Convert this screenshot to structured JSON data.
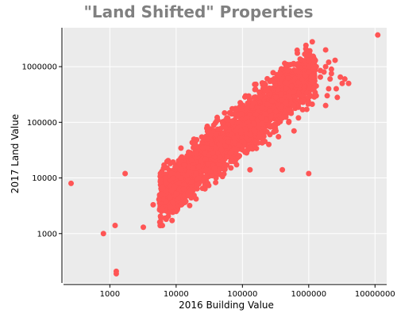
{
  "chart_data": {
    "type": "scatter",
    "title": "\"Land Shifted\" Properties",
    "xlabel": "2016 Building Value",
    "ylabel": "2017 Land Value",
    "x_scale": "log",
    "y_scale": "log",
    "xlim": [
      200,
      15000000
    ],
    "ylim": [
      130,
      5000000
    ],
    "x_ticks": [
      1000,
      10000,
      100000,
      1000000,
      10000000
    ],
    "x_tick_labels": [
      "1000",
      "10000",
      "100000",
      "1000000",
      "10000000"
    ],
    "y_ticks": [
      1000,
      10000,
      100000,
      1000000
    ],
    "y_tick_labels": [
      "1000",
      "10000",
      "100000",
      "1000000"
    ],
    "grid": true,
    "colors": {
      "point": "#ff5555",
      "panel": "#ebebeb",
      "grid": "#ffffff",
      "title": "#808080"
    },
    "points": [
      [
        260,
        8000
      ],
      [
        800,
        1000
      ],
      [
        1200,
        1400
      ],
      [
        1250,
        210
      ],
      [
        1250,
        190
      ],
      [
        1700,
        12000
      ],
      [
        3200,
        1300
      ],
      [
        6200,
        1400
      ],
      [
        4500,
        3300
      ],
      [
        5500,
        4100
      ],
      [
        6000,
        5100
      ],
      [
        7000,
        3800
      ],
      [
        8000,
        4500
      ],
      [
        8500,
        6000
      ],
      [
        9000,
        3600
      ],
      [
        9500,
        7000
      ],
      [
        10000,
        5200
      ],
      [
        11000,
        8000
      ],
      [
        12000,
        10000
      ],
      [
        13000,
        7500
      ],
      [
        14000,
        11000
      ],
      [
        15000,
        9000
      ],
      [
        16000,
        13000
      ],
      [
        17000,
        8500
      ],
      [
        18000,
        15000
      ],
      [
        20000,
        12000
      ],
      [
        22000,
        16000
      ],
      [
        24000,
        20000
      ],
      [
        26000,
        14000
      ],
      [
        28000,
        22000
      ],
      [
        30000,
        18000
      ],
      [
        32000,
        26000
      ],
      [
        35000,
        30000
      ],
      [
        38000,
        24000
      ],
      [
        40000,
        34000
      ],
      [
        42000,
        28000
      ],
      [
        45000,
        40000
      ],
      [
        48000,
        32000
      ],
      [
        50000,
        45000
      ],
      [
        55000,
        38000
      ],
      [
        60000,
        50000
      ],
      [
        65000,
        44000
      ],
      [
        70000,
        60000
      ],
      [
        75000,
        52000
      ],
      [
        80000,
        70000
      ],
      [
        85000,
        58000
      ],
      [
        90000,
        80000
      ],
      [
        95000,
        65000
      ],
      [
        100000,
        90000
      ],
      [
        110000,
        75000
      ],
      [
        120000,
        100000
      ],
      [
        130000,
        85000
      ],
      [
        140000,
        120000
      ],
      [
        150000,
        95000
      ],
      [
        160000,
        140000
      ],
      [
        170000,
        110000
      ],
      [
        180000,
        160000
      ],
      [
        190000,
        125000
      ],
      [
        200000,
        180000
      ],
      [
        220000,
        140000
      ],
      [
        240000,
        210000
      ],
      [
        260000,
        160000
      ],
      [
        280000,
        240000
      ],
      [
        300000,
        180000
      ],
      [
        320000,
        280000
      ],
      [
        350000,
        200000
      ],
      [
        380000,
        320000
      ],
      [
        400000,
        250000
      ],
      [
        450000,
        400000
      ],
      [
        500000,
        300000
      ],
      [
        550000,
        450000
      ],
      [
        600000,
        350000
      ],
      [
        700000,
        520000
      ],
      [
        800000,
        600000
      ],
      [
        900000,
        700000
      ],
      [
        1000000,
        800000
      ],
      [
        1100000,
        650000
      ],
      [
        1200000,
        900000
      ],
      [
        1300000,
        1000000
      ],
      [
        1500000,
        850000
      ],
      [
        1800000,
        1000000
      ],
      [
        2000000,
        1200000
      ],
      [
        2200000,
        900000
      ],
      [
        15000,
        5000
      ],
      [
        18000,
        6000
      ],
      [
        21000,
        7500
      ],
      [
        25000,
        9000
      ],
      [
        28000,
        10500
      ],
      [
        33000,
        12500
      ],
      [
        38000,
        15000
      ],
      [
        44000,
        17500
      ],
      [
        50000,
        20000
      ],
      [
        58000,
        24000
      ],
      [
        66000,
        28000
      ],
      [
        76000,
        33000
      ],
      [
        88000,
        39000
      ],
      [
        100000,
        45000
      ],
      [
        115000,
        52000
      ],
      [
        130000,
        60000
      ],
      [
        150000,
        70000
      ],
      [
        175000,
        82000
      ],
      [
        200000,
        95000
      ],
      [
        230000,
        110000
      ],
      [
        270000,
        130000
      ],
      [
        320000,
        155000
      ],
      [
        380000,
        185000
      ],
      [
        450000,
        220000
      ],
      [
        7000,
        8000
      ],
      [
        9000,
        10000
      ],
      [
        12000,
        14000
      ],
      [
        16000,
        20000
      ],
      [
        20000,
        27000
      ],
      [
        26000,
        36000
      ],
      [
        33000,
        48000
      ],
      [
        42000,
        62000
      ],
      [
        55000,
        80000
      ],
      [
        70000,
        105000
      ],
      [
        90000,
        135000
      ],
      [
        115000,
        175000
      ],
      [
        145000,
        225000
      ],
      [
        185000,
        290000
      ],
      [
        240000,
        380000
      ],
      [
        310000,
        500000
      ],
      [
        400000,
        650000
      ],
      [
        520000,
        850000
      ],
      [
        25000,
        35000
      ],
      [
        30000,
        50000
      ],
      [
        40000,
        60000
      ],
      [
        35000,
        11000
      ],
      [
        45000,
        14000
      ],
      [
        55000,
        17000
      ],
      [
        200000,
        120000
      ],
      [
        300000,
        90000
      ],
      [
        260000,
        60000
      ],
      [
        320000,
        70000
      ],
      [
        400000,
        120000
      ],
      [
        600000,
        200000
      ],
      [
        800000,
        300000
      ],
      [
        600000,
        70000
      ],
      [
        700000,
        120000
      ],
      [
        500000,
        100000
      ],
      [
        350000,
        55000
      ],
      [
        250000,
        40000
      ],
      [
        20000,
        4200
      ],
      [
        22000,
        10000
      ],
      [
        10000,
        2500
      ],
      [
        8000,
        3000
      ],
      [
        6000,
        2800
      ],
      [
        12000,
        3300
      ],
      [
        14000,
        3800
      ],
      [
        25000,
        6500
      ],
      [
        28000,
        14000
      ],
      [
        60000,
        110000
      ],
      [
        75000,
        140000
      ],
      [
        120000,
        220000
      ],
      [
        150000,
        280000
      ],
      [
        180000,
        350000
      ],
      [
        220000,
        420000
      ],
      [
        280000,
        550000
      ],
      [
        360000,
        700000
      ],
      [
        480000,
        850000
      ],
      [
        30000,
        8000
      ],
      [
        40000,
        10000
      ],
      [
        70000,
        20000
      ],
      [
        90000,
        25000
      ],
      [
        110000,
        30000
      ],
      [
        130000,
        35000
      ],
      [
        1300000,
        450000
      ],
      [
        1500000,
        650000
      ],
      [
        1700000,
        800000
      ],
      [
        2000000,
        400000
      ],
      [
        2100000,
        600000
      ],
      [
        2200000,
        750000
      ],
      [
        2600000,
        400000
      ],
      [
        3000000,
        650000
      ],
      [
        3200000,
        500000
      ],
      [
        2700000,
        280000
      ],
      [
        3500000,
        600000
      ],
      [
        4000000,
        500000
      ],
      [
        1800000,
        200000
      ],
      [
        1300000,
        300000
      ],
      [
        1900000,
        300000
      ],
      [
        1800000,
        2000000
      ],
      [
        1200000,
        1300000
      ],
      [
        2500000,
        1300000
      ],
      [
        80000,
        170000
      ],
      [
        130000,
        14000
      ],
      [
        400000,
        14000
      ],
      [
        1000000,
        12000
      ],
      [
        11000000,
        3700000
      ],
      [
        36000,
        28000
      ],
      [
        60000,
        45000
      ],
      [
        46000,
        52000
      ],
      [
        85000,
        100000
      ],
      [
        95000,
        70000
      ],
      [
        17000,
        21000
      ],
      [
        13000,
        6300
      ]
    ]
  }
}
